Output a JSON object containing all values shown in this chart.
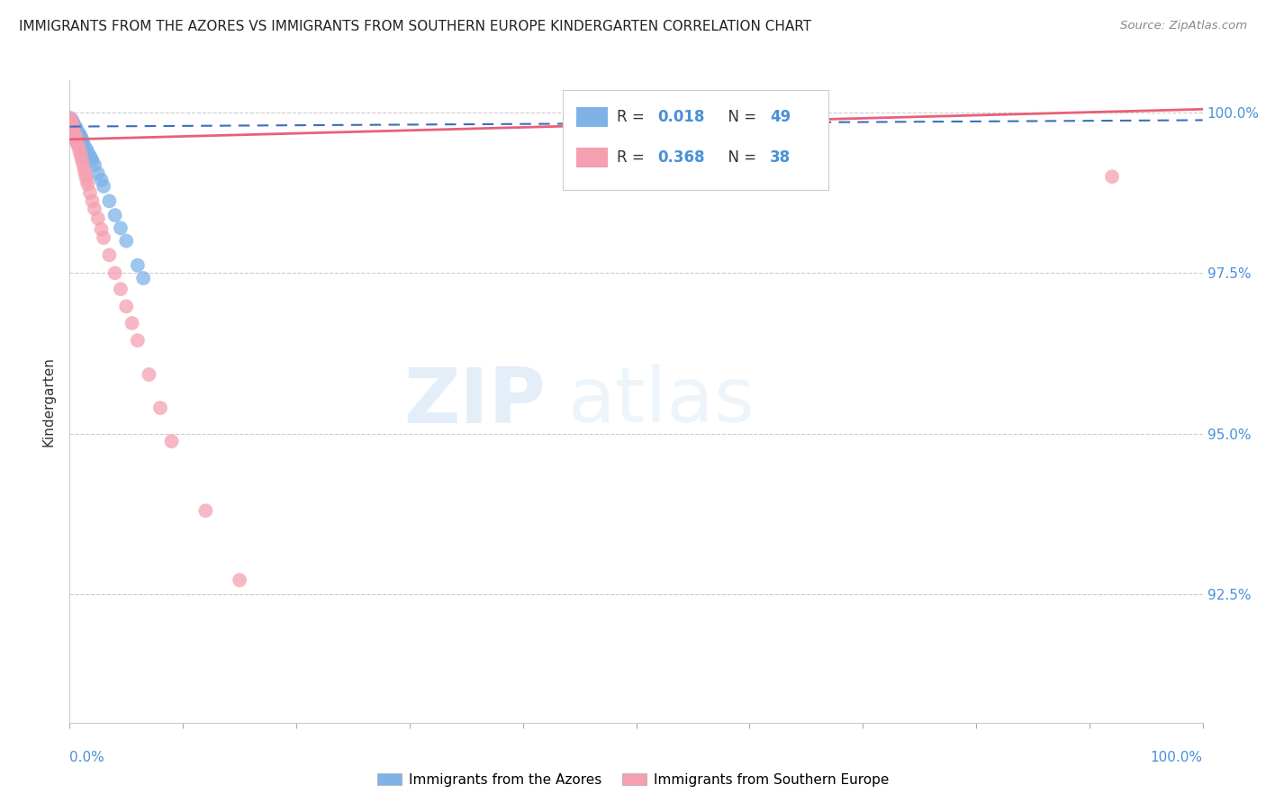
{
  "title": "IMMIGRANTS FROM THE AZORES VS IMMIGRANTS FROM SOUTHERN EUROPE KINDERGARTEN CORRELATION CHART",
  "source": "Source: ZipAtlas.com",
  "ylabel": "Kindergarten",
  "ylabel_right_labels": [
    "100.0%",
    "97.5%",
    "95.0%",
    "92.5%"
  ],
  "ylabel_right_values": [
    1.0,
    0.975,
    0.95,
    0.925
  ],
  "xmin": 0.0,
  "xmax": 1.0,
  "ymin": 0.905,
  "ymax": 1.005,
  "legend_blue_R": "0.018",
  "legend_blue_N": "49",
  "legend_pink_R": "0.368",
  "legend_pink_N": "38",
  "legend_label_blue": "Immigrants from the Azores",
  "legend_label_pink": "Immigrants from Southern Europe",
  "blue_color": "#7fb3e8",
  "pink_color": "#f4a0b0",
  "blue_line_color": "#3a6ebd",
  "pink_line_color": "#e8607a",
  "r_n_color": "#4a90d9",
  "watermark_zip": "ZIP",
  "watermark_atlas": "atlas",
  "blue_x": [
    0.0,
    0.0,
    0.001,
    0.001,
    0.001,
    0.002,
    0.002,
    0.002,
    0.002,
    0.003,
    0.003,
    0.003,
    0.003,
    0.004,
    0.004,
    0.004,
    0.005,
    0.005,
    0.005,
    0.005,
    0.006,
    0.006,
    0.006,
    0.007,
    0.007,
    0.008,
    0.008,
    0.009,
    0.009,
    0.01,
    0.01,
    0.011,
    0.012,
    0.013,
    0.015,
    0.016,
    0.018,
    0.019,
    0.02,
    0.022,
    0.025,
    0.028,
    0.03,
    0.035,
    0.04,
    0.045,
    0.05,
    0.06,
    0.065
  ],
  "blue_y": [
    0.9988,
    0.9982,
    0.999,
    0.9985,
    0.9978,
    0.9988,
    0.9983,
    0.9978,
    0.997,
    0.9985,
    0.9978,
    0.9972,
    0.9965,
    0.998,
    0.9975,
    0.9968,
    0.9978,
    0.9972,
    0.9965,
    0.9958,
    0.9975,
    0.9968,
    0.9962,
    0.997,
    0.9963,
    0.9968,
    0.9962,
    0.9965,
    0.9958,
    0.9962,
    0.9955,
    0.9958,
    0.9952,
    0.9948,
    0.9942,
    0.9938,
    0.9932,
    0.9928,
    0.9925,
    0.9918,
    0.9905,
    0.9895,
    0.9885,
    0.9862,
    0.984,
    0.982,
    0.98,
    0.9762,
    0.9742
  ],
  "pink_x": [
    0.0,
    0.001,
    0.002,
    0.002,
    0.003,
    0.003,
    0.004,
    0.005,
    0.005,
    0.006,
    0.007,
    0.008,
    0.009,
    0.01,
    0.011,
    0.012,
    0.013,
    0.014,
    0.015,
    0.016,
    0.018,
    0.02,
    0.022,
    0.025,
    0.028,
    0.03,
    0.035,
    0.04,
    0.045,
    0.05,
    0.055,
    0.06,
    0.07,
    0.08,
    0.09,
    0.12,
    0.15,
    0.92
  ],
  "pink_y": [
    0.9992,
    0.9988,
    0.9985,
    0.998,
    0.9978,
    0.9972,
    0.9968,
    0.9965,
    0.996,
    0.9955,
    0.995,
    0.9945,
    0.9938,
    0.9932,
    0.9925,
    0.9918,
    0.991,
    0.9902,
    0.9895,
    0.9888,
    0.9875,
    0.9862,
    0.985,
    0.9835,
    0.9818,
    0.9805,
    0.9778,
    0.975,
    0.9725,
    0.9698,
    0.9672,
    0.9645,
    0.9592,
    0.954,
    0.9488,
    0.938,
    0.9272,
    0.99
  ]
}
